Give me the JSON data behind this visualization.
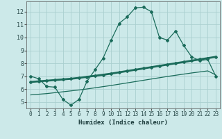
{
  "xlabel": "Humidex (Indice chaleur)",
  "x_ticks": [
    0,
    1,
    2,
    3,
    4,
    5,
    6,
    7,
    8,
    9,
    10,
    11,
    12,
    13,
    14,
    15,
    16,
    17,
    18,
    19,
    20,
    21,
    22,
    23
  ],
  "xlim": [
    -0.5,
    23.5
  ],
  "ylim": [
    4.5,
    12.8
  ],
  "y_ticks": [
    5,
    6,
    7,
    8,
    9,
    10,
    11,
    12
  ],
  "background_color": "#cce9e9",
  "grid_color": "#aacfcf",
  "line_color": "#1a6b5a",
  "line1_x": [
    0,
    1,
    2,
    3,
    4,
    5,
    6,
    7,
    8,
    9,
    10,
    11,
    12,
    13,
    14,
    15,
    16,
    17,
    18,
    19,
    20,
    21,
    22,
    23
  ],
  "line1_y": [
    7.0,
    6.8,
    6.2,
    6.15,
    5.2,
    4.75,
    5.2,
    6.6,
    7.5,
    8.4,
    9.8,
    11.1,
    11.6,
    12.3,
    12.35,
    12.0,
    10.0,
    9.8,
    10.5,
    9.4,
    8.5,
    8.2,
    8.3,
    7.0
  ],
  "line2_x": [
    0,
    1,
    2,
    3,
    4,
    5,
    6,
    7,
    8,
    9,
    10,
    11,
    12,
    13,
    14,
    15,
    16,
    17,
    18,
    19,
    20,
    21,
    22,
    23
  ],
  "line2_y": [
    6.55,
    6.6,
    6.65,
    6.7,
    6.75,
    6.8,
    6.87,
    6.95,
    7.03,
    7.11,
    7.2,
    7.3,
    7.4,
    7.5,
    7.6,
    7.7,
    7.8,
    7.9,
    8.0,
    8.1,
    8.2,
    8.3,
    8.4,
    8.5
  ],
  "line3_x": [
    0,
    1,
    2,
    3,
    4,
    5,
    6,
    7,
    8,
    9,
    10,
    11,
    12,
    13,
    14,
    15,
    16,
    17,
    18,
    19,
    20,
    21,
    22,
    23
  ],
  "line3_y": [
    5.55,
    5.6,
    5.65,
    5.72,
    5.79,
    5.86,
    5.93,
    6.01,
    6.1,
    6.19,
    6.28,
    6.38,
    6.48,
    6.58,
    6.68,
    6.78,
    6.88,
    6.98,
    7.07,
    7.16,
    7.25,
    7.33,
    7.41,
    7.1
  ]
}
